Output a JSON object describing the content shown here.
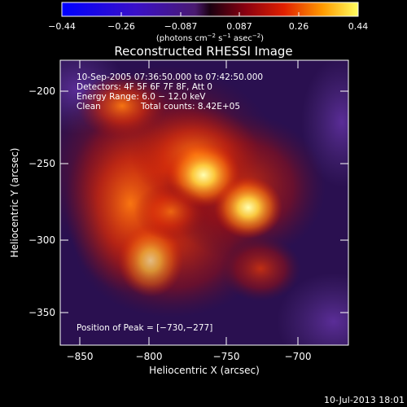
{
  "colorbar": {
    "ticks": [
      "−0.44",
      "−0.26",
      "−0.087",
      "0.087",
      "0.26",
      "0.44"
    ],
    "units_main": "(photons cm",
    "units_exp1": "−2",
    "units_mid": " s",
    "units_exp2": "−1",
    "units_end": " asec",
    "units_exp3": "−2",
    "units_close": ")"
  },
  "plot": {
    "title": "Reconstructed RHESSI Image",
    "xlabel": "Heliocentric X (arcsec)",
    "ylabel": "Heliocentric Y (arcsec)",
    "x_ticks": [
      "−850",
      "−800",
      "−750",
      "−700"
    ],
    "y_ticks": [
      "−200",
      "−250",
      "−300",
      "−350"
    ],
    "annotations": {
      "time_range": "10-Sep-2005 07:36:50.000 to 07:42:50.000",
      "detectors": "Detectors: 4F 5F 6F 7F 8F, Att 0",
      "energy": "Energy Range: 6.0 − 12.0 keV",
      "method": "Clean",
      "counts": "Total counts: 8.42E+05",
      "peak": "Position of Peak = [−730,−277]"
    }
  },
  "footer": {
    "timestamp": "10-Jul-2013 18:01"
  },
  "colors": {
    "background": "#000000",
    "text": "#ffffff"
  }
}
